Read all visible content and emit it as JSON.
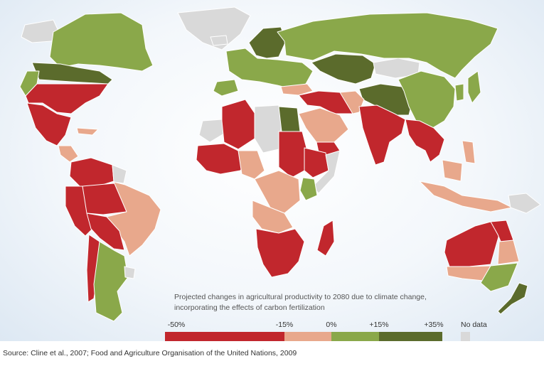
{
  "colors": {
    "strong_decline": "#c1272d",
    "decline": "#e8a88c",
    "gain": "#8aa84a",
    "strong_gain": "#5b6b2c",
    "no_data": "#d9d9d9",
    "ocean_edge": "#dde8f3"
  },
  "caption": {
    "line1": "Projected changes in agricultural productivity to 2080 due to climate change,",
    "line2": "incorporating the effects of carbon fertilization"
  },
  "legend": {
    "ticks": [
      "-50%",
      "-15%",
      "0%",
      "+15%",
      "+35%"
    ],
    "segments": [
      {
        "from": -50,
        "to": -15,
        "category": "strong_decline"
      },
      {
        "from": -15,
        "to": 0,
        "category": "decline"
      },
      {
        "from": 0,
        "to": 15,
        "category": "gain"
      },
      {
        "from": 15,
        "to": 35,
        "category": "strong_gain"
      }
    ],
    "no_data_label": "No data"
  },
  "source": "Source: Cline et al., 2007; Food and Agriculture Organisation of the United Nations, 2009",
  "regions": [
    {
      "name": "greenland",
      "category": "no_data"
    },
    {
      "name": "alaska",
      "category": "no_data"
    },
    {
      "name": "canada",
      "category": "gain"
    },
    {
      "name": "usa-north",
      "category": "strong_gain"
    },
    {
      "name": "usa-northwest",
      "category": "gain"
    },
    {
      "name": "usa-south",
      "category": "strong_decline"
    },
    {
      "name": "mexico",
      "category": "strong_decline"
    },
    {
      "name": "central-america",
      "category": "decline"
    },
    {
      "name": "colombia-venezuela",
      "category": "strong_decline"
    },
    {
      "name": "guianas",
      "category": "no_data"
    },
    {
      "name": "peru",
      "category": "strong_decline"
    },
    {
      "name": "brazil-west",
      "category": "strong_decline"
    },
    {
      "name": "brazil-east",
      "category": "decline"
    },
    {
      "name": "bolivia-paraguay",
      "category": "strong_decline"
    },
    {
      "name": "chile",
      "category": "strong_decline"
    },
    {
      "name": "argentina",
      "category": "gain"
    },
    {
      "name": "uruguay",
      "category": "no_data"
    },
    {
      "name": "iceland",
      "category": "no_data"
    },
    {
      "name": "scandinavia",
      "category": "strong_gain"
    },
    {
      "name": "western-europe",
      "category": "gain"
    },
    {
      "name": "iberia",
      "category": "gain"
    },
    {
      "name": "turkey",
      "category": "decline"
    },
    {
      "name": "russia",
      "category": "gain"
    },
    {
      "name": "kazakhstan",
      "category": "strong_gain"
    },
    {
      "name": "mongolia",
      "category": "no_data"
    },
    {
      "name": "china-west",
      "category": "strong_gain"
    },
    {
      "name": "china-east",
      "category": "gain"
    },
    {
      "name": "korea-japan",
      "category": "gain"
    },
    {
      "name": "middle-east",
      "category": "strong_decline"
    },
    {
      "name": "arabia",
      "category": "decline"
    },
    {
      "name": "yemen",
      "category": "strong_decline"
    },
    {
      "name": "iran",
      "category": "decline"
    },
    {
      "name": "india",
      "category": "strong_decline"
    },
    {
      "name": "southeast-asia",
      "category": "strong_decline"
    },
    {
      "name": "indonesia",
      "category": "decline"
    },
    {
      "name": "philippines",
      "category": "decline"
    },
    {
      "name": "papua",
      "category": "no_data"
    },
    {
      "name": "western-sahara",
      "category": "no_data"
    },
    {
      "name": "algeria",
      "category": "strong_decline"
    },
    {
      "name": "libya",
      "category": "no_data"
    },
    {
      "name": "egypt",
      "category": "strong_gain"
    },
    {
      "name": "west-africa",
      "category": "strong_decline"
    },
    {
      "name": "gulf-of-guinea",
      "category": "decline"
    },
    {
      "name": "sudan",
      "category": "strong_decline"
    },
    {
      "name": "ethiopia",
      "category": "strong_decline"
    },
    {
      "name": "somalia",
      "category": "no_data"
    },
    {
      "name": "kenya",
      "category": "gain"
    },
    {
      "name": "central-africa",
      "category": "decline"
    },
    {
      "name": "angola",
      "category": "decline"
    },
    {
      "name": "southern-africa",
      "category": "strong_decline"
    },
    {
      "name": "madagascar",
      "category": "strong_decline"
    },
    {
      "name": "australia-west",
      "category": "strong_decline"
    },
    {
      "name": "australia-north-east",
      "category": "strong_decline"
    },
    {
      "name": "australia-east",
      "category": "decline"
    },
    {
      "name": "australia-south",
      "category": "decline"
    },
    {
      "name": "australia-south-east",
      "category": "gain"
    },
    {
      "name": "new-zealand",
      "category": "strong_gain"
    }
  ]
}
